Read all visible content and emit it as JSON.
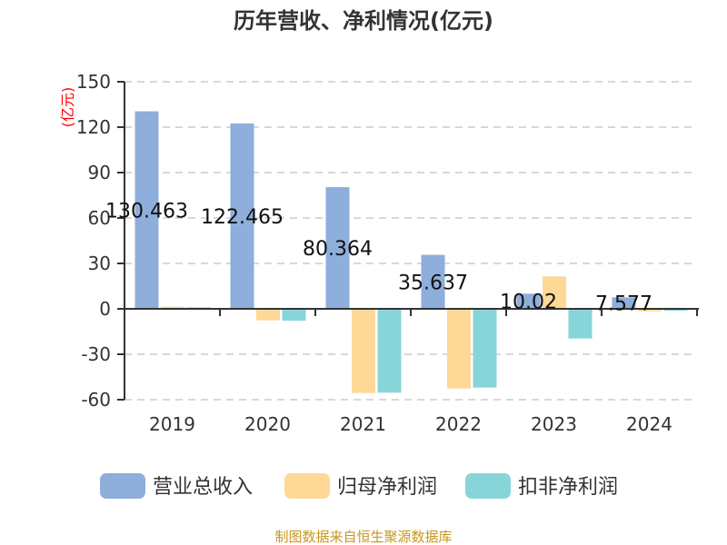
{
  "chart_data": {
    "type": "bar",
    "title": "历年营收、净利情况(亿元)",
    "ylabel": "(亿元)",
    "xlabel": "",
    "categories": [
      "2019",
      "2020",
      "2021",
      "2022",
      "2023",
      "2024"
    ],
    "ylim": [
      -60,
      150
    ],
    "yticks": [
      150,
      120,
      90,
      60,
      30,
      0,
      -30,
      -60
    ],
    "grid": true,
    "legend_position": "bottom",
    "series": [
      {
        "name": "营业总收入",
        "color": "#8eaedb",
        "values": [
          130.463,
          122.465,
          80.364,
          35.637,
          10.02,
          7.577
        ],
        "labels": [
          "130.463",
          "122.465",
          "80.364",
          "35.637",
          "10.02",
          "7.577"
        ]
      },
      {
        "name": "归母净利润",
        "color": "#fdd897",
        "values": [
          1.4,
          -7.6,
          -55.6,
          -52.6,
          21.4,
          -1.6
        ]
      },
      {
        "name": "扣非净利润",
        "color": "#88d5d9",
        "values": [
          1.0,
          -7.8,
          -55.4,
          -52.0,
          -19.6,
          -1.3
        ]
      }
    ]
  },
  "footer": "制图数据来自恒生聚源数据库",
  "colors": {
    "title": "#333333",
    "ylabel": "#ff0000",
    "footer": "#c8961e"
  }
}
